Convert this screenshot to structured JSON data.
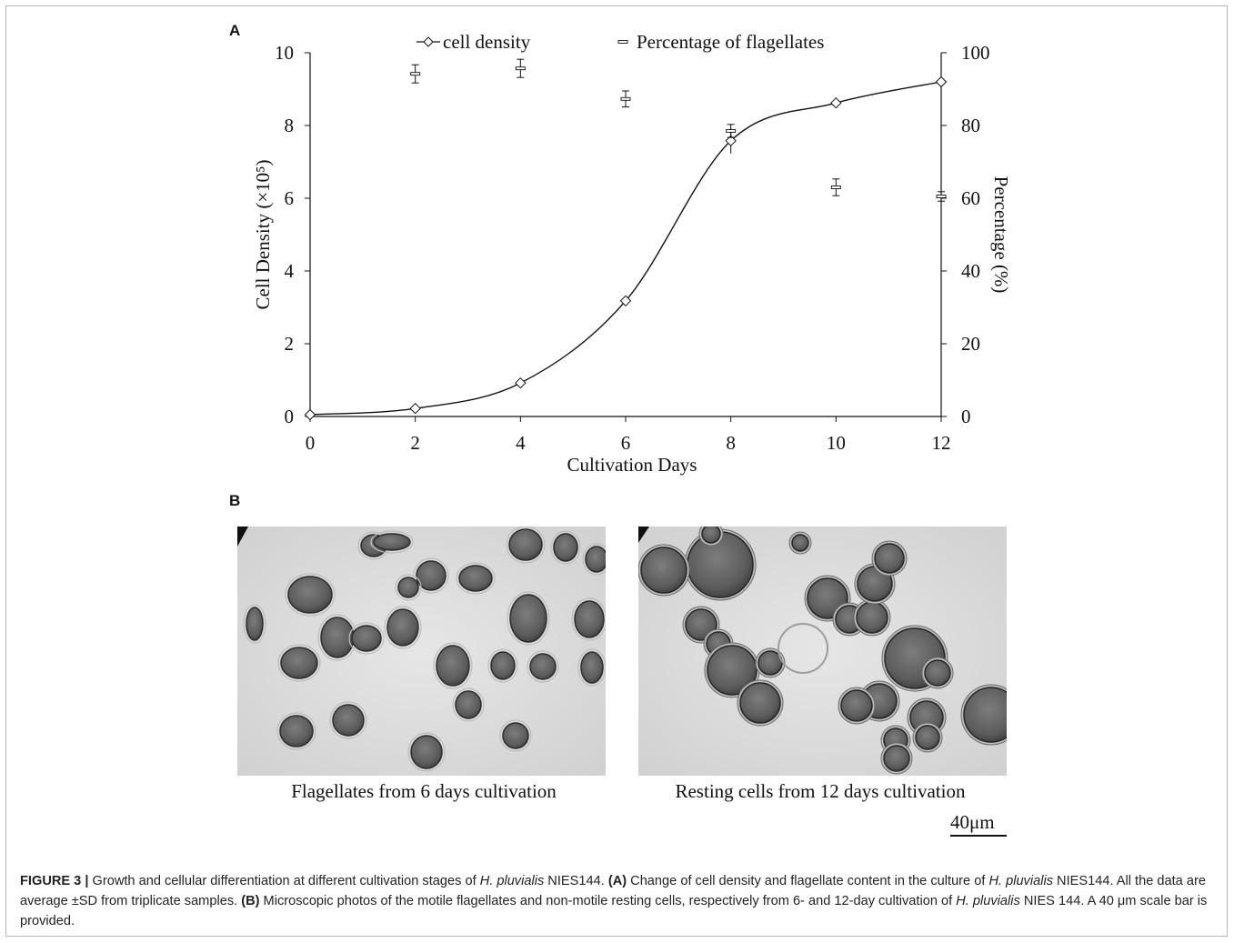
{
  "panel_a_label": "A",
  "panel_b_label": "B",
  "chart_data": {
    "type": "scatter",
    "xlabel": "Cultivation Days",
    "ylabel": "Cell Density (×10⁵)",
    "y2label": "Percentage (%)",
    "xlim": [
      0,
      12
    ],
    "ylim": [
      0,
      10
    ],
    "y2lim": [
      0,
      100
    ],
    "x_ticks": [
      "0",
      "2",
      "4",
      "6",
      "8",
      "10",
      "12"
    ],
    "y_ticks": [
      "0",
      "2",
      "4",
      "6",
      "8",
      "10"
    ],
    "y2_ticks": [
      "0",
      "20",
      "40",
      "60",
      "80",
      "100"
    ],
    "legend_position": "top",
    "series": [
      {
        "name": "cell density",
        "axis": "left",
        "marker": "diamond",
        "line": "smooth",
        "x": [
          0,
          2,
          4,
          6,
          8,
          10,
          12
        ],
        "y": [
          0.05,
          0.22,
          0.92,
          3.18,
          7.58,
          8.62,
          9.2
        ],
        "err": [
          0,
          0,
          0,
          0,
          0.35,
          0,
          0
        ]
      },
      {
        "name": "Percentage of flagellates",
        "axis": "right",
        "marker": "dash",
        "line": "none",
        "x": [
          2,
          4,
          6,
          8,
          10,
          12
        ],
        "y": [
          94.2,
          95.7,
          87.3,
          78.5,
          63.0,
          60.5
        ],
        "err": [
          1.5,
          1.5,
          1.2,
          0.8,
          1.3,
          0.3
        ]
      }
    ]
  },
  "photos": {
    "left_caption": "Flagellates from 6 days cultivation",
    "right_caption": "Resting cells from 12 days cultivation",
    "scale_label": "40μm"
  },
  "caption": {
    "figure_number": "FIGURE 3 |",
    "s1": " Growth and cellular differentiation at different cultivation stages of ",
    "s2": "H. pluvialis",
    "s3": " NIES144. ",
    "s4": "(A)",
    "s5": " Change of cell density and flagellate content in the culture of ",
    "s6": "H. pluvialis",
    "s7": " NIES144. All the data are average ±SD from triplicate samples. ",
    "s8": "(B)",
    "s9": " Microscopic photos of the motile flagellates and non-motile resting cells, respectively from 6- and 12-day cultivation of ",
    "s10": "H. pluvialis",
    "s11": " NIES 144. A 40 μm scale bar is provided."
  }
}
